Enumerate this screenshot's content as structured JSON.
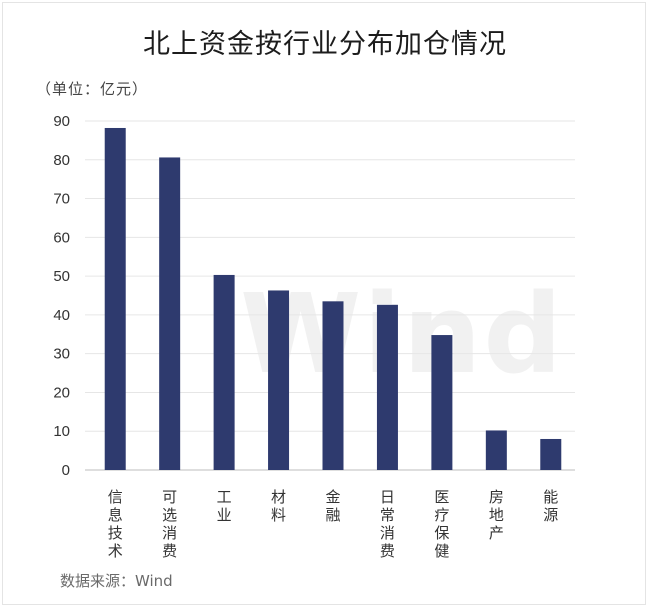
{
  "title": "北上资金按行业分布加仓情况",
  "unit_label": "（单位：亿元）",
  "source": "数据来源：Wind",
  "watermark": "Wind",
  "colors": {
    "bar": "#2e3a6e",
    "grid": "#e6e6e6",
    "axis": "#bdbdbd"
  },
  "chart_data": {
    "type": "bar",
    "title": "北上资金按行业分布加仓情况",
    "ylabel": "（单位：亿元）",
    "xlabel": "",
    "categories": [
      "信息技术",
      "可选消费",
      "工业",
      "材料",
      "金融",
      "日常消费",
      "医疗保健",
      "房地产",
      "能源"
    ],
    "values": [
      88.2,
      80.6,
      50.3,
      46.3,
      43.5,
      42.6,
      34.8,
      10.2,
      8.0
    ],
    "ylim": [
      0,
      90
    ],
    "yticks": [
      0,
      10,
      20,
      30,
      40,
      50,
      60,
      70,
      80,
      90
    ],
    "grid": true,
    "legend": "none"
  }
}
